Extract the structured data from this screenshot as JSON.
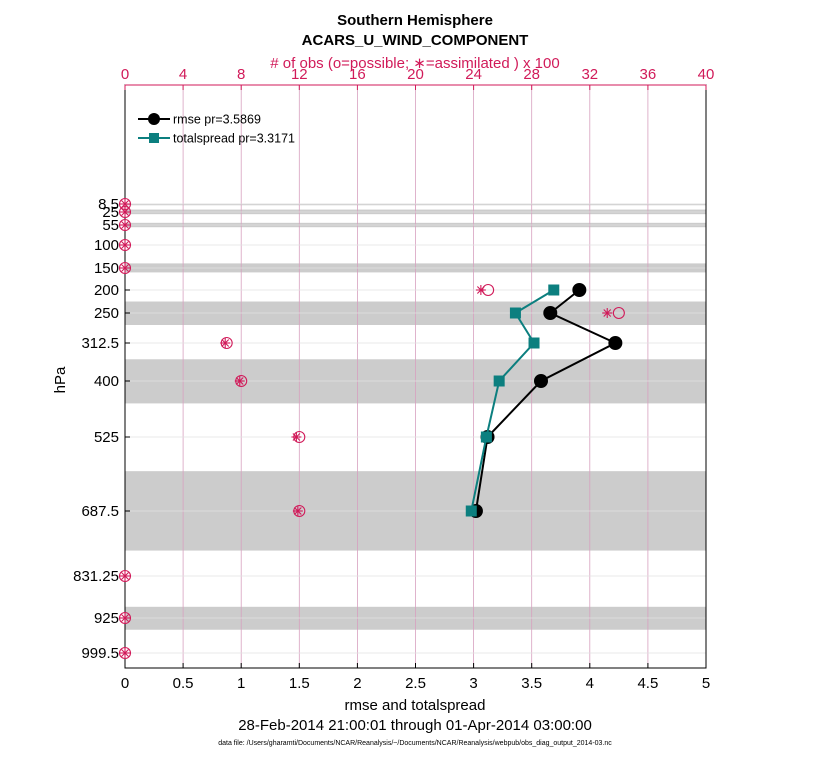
{
  "chart_data": {
    "type": "line",
    "title": "Southern Hemisphere",
    "subtitle": "ACARS_U_WIND_COMPONENT",
    "top_axis_label": "# of obs (o=possible; ∗=assimilated ) x 100",
    "xlabel": "rmse and totalspread",
    "ylabel": "hPa",
    "date_range": "28-Feb-2014 21:00:01 through 01-Apr-2014 03:00:00",
    "footnote": "data file: /Users/gharamti/Documents/NCAR/Reanalysis/~/Documents/NCAR/Reanalysis/webpub/obs_diag_output_2014-03.nc",
    "xlim": [
      0,
      5
    ],
    "x_ticks": [
      "0",
      "0.5",
      "1",
      "1.5",
      "2",
      "2.5",
      "3",
      "3.5",
      "4",
      "4.5",
      "5"
    ],
    "top_xlim": [
      0,
      40
    ],
    "top_ticks": [
      "0",
      "4",
      "8",
      "12",
      "16",
      "20",
      "24",
      "28",
      "32",
      "36",
      "40"
    ],
    "y_ticks": [
      "8.5",
      "25",
      "55",
      "100",
      "150",
      "200",
      "250",
      "312.5",
      "400",
      "525",
      "687.5",
      "831.25",
      "925",
      "999.5"
    ],
    "pressure_levels": [
      8.5,
      25,
      55,
      100,
      150,
      200,
      250,
      312.5,
      400,
      525,
      687.5,
      831.25,
      925,
      999.5
    ],
    "series": [
      {
        "name": "rmse pr=3.5869",
        "color": "#000000",
        "marker": "circle",
        "points": [
          [
            3.91,
            200
          ],
          [
            3.66,
            250
          ],
          [
            4.22,
            312.5
          ],
          [
            3.58,
            400
          ],
          [
            3.12,
            525
          ],
          [
            3.02,
            687.5
          ]
        ]
      },
      {
        "name": "totalspread pr=3.3171",
        "color": "#0c7f7f",
        "marker": "square",
        "points": [
          [
            3.69,
            200
          ],
          [
            3.36,
            250
          ],
          [
            3.52,
            312.5
          ],
          [
            3.22,
            400
          ],
          [
            3.11,
            525
          ],
          [
            2.98,
            687.5
          ]
        ]
      }
    ],
    "obs_counts": {
      "color": "#d11a59",
      "levels": [
        8.5,
        25,
        55,
        100,
        150,
        200,
        250,
        312.5,
        400,
        525,
        687.5,
        831.25,
        925,
        999.5
      ],
      "possible": [
        0,
        0,
        0,
        0,
        0,
        25,
        34,
        7,
        8,
        12,
        12,
        0,
        0,
        0
      ],
      "assimilated": [
        0,
        0,
        0,
        0,
        0,
        24.5,
        33.2,
        6.9,
        7.9,
        11.8,
        11.9,
        0,
        0,
        0
      ]
    },
    "grid": true,
    "legend_position": "top-left",
    "shaded_bands": [
      [
        8,
        9
      ],
      [
        20,
        30
      ],
      [
        50,
        60
      ],
      [
        140,
        160
      ],
      [
        225,
        275
      ],
      [
        350,
        450
      ],
      [
        600,
        775
      ],
      [
        900,
        950
      ]
    ]
  }
}
